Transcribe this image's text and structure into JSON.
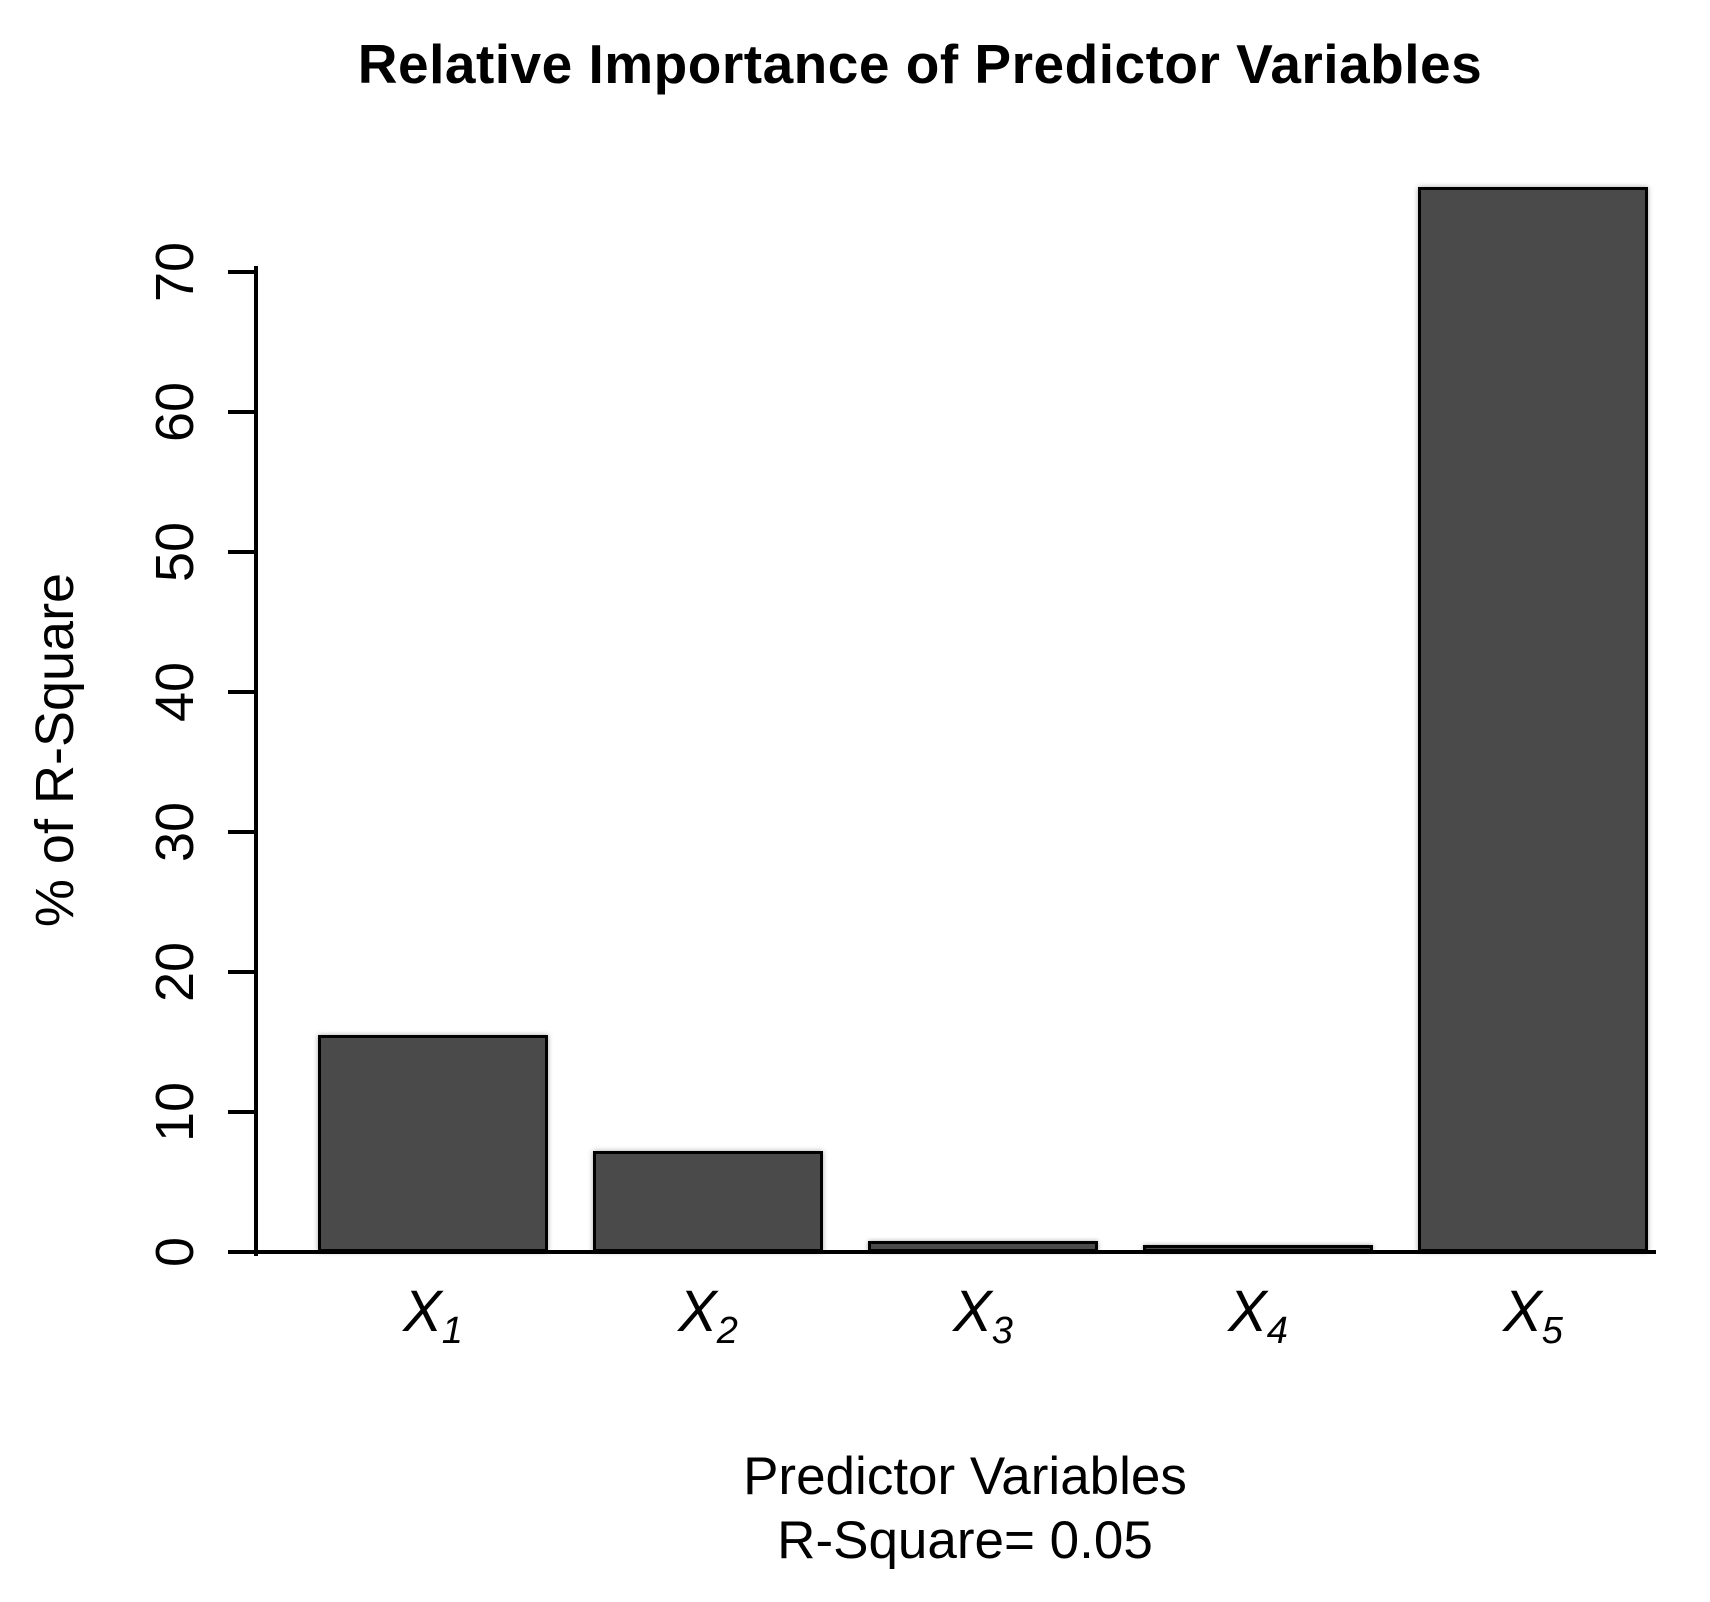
{
  "chart_data": {
    "type": "bar",
    "title": "Relative Importance of Predictor Variables",
    "categories": [
      {
        "base": "X",
        "sub": "1"
      },
      {
        "base": "X",
        "sub": "2"
      },
      {
        "base": "X",
        "sub": "3"
      },
      {
        "base": "X",
        "sub": "4"
      },
      {
        "base": "X",
        "sub": "5"
      }
    ],
    "values": [
      15.5,
      7.2,
      0.8,
      0.5,
      76.1
    ],
    "xlabel": "Predictor Variables",
    "xlabel_subtitle": "R-Square= 0.05",
    "ylabel": "% of R-Square",
    "yticks": [
      0,
      10,
      20,
      30,
      40,
      50,
      60,
      70
    ],
    "ylim": [
      0,
      76.5
    ],
    "grid": false,
    "legend": "none",
    "bar_fill": "#4a4a4a",
    "bar_border": "#000000",
    "text_color": "#000000",
    "background": "#ffffff"
  }
}
